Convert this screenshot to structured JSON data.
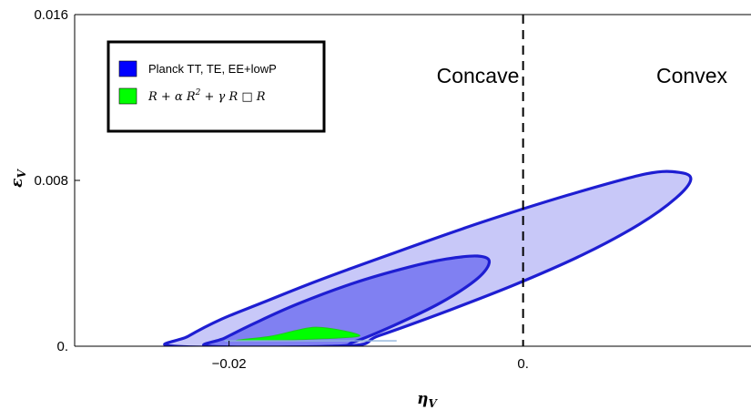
{
  "chart_data": {
    "type": "contour",
    "xlabel": "η",
    "xlabel_sub": "V",
    "ylabel": "ε",
    "ylabel_sub": "V",
    "xlim": [
      -0.0305,
      0.0155
    ],
    "ylim": [
      0,
      0.016
    ],
    "x_ticks": [
      {
        "value": -0.02,
        "label": "−0.02"
      },
      {
        "value": 0,
        "label": "0."
      }
    ],
    "y_ticks": [
      {
        "value": 0,
        "label": "0."
      },
      {
        "value": 0.008,
        "label": "0.008"
      },
      {
        "value": 0.016,
        "label": "0.016"
      }
    ],
    "divider": {
      "x": 0,
      "style": "dashed"
    },
    "region_labels": [
      "Concave",
      "Convex"
    ],
    "legend": {
      "position": "top-left",
      "entries": [
        {
          "label": "Planck TT, TE, EE+lowP",
          "color": "#0000ff"
        },
        {
          "label_parts": [
            "R + α R",
            "2",
            " + γ R □ R"
          ],
          "color": "#00ff00"
        }
      ]
    },
    "series": [
      {
        "name": "Planck TT, TE, EE+lowP",
        "kind": "confidence-contour",
        "level": "95%",
        "fill": "#c8c8f8",
        "stroke": "#1e1ed2",
        "points": [
          [
            -0.0237,
            0.0
          ],
          [
            -0.0228,
            0.00047
          ],
          [
            -0.0205,
            0.00131
          ],
          [
            -0.0177,
            0.00211
          ],
          [
            -0.0139,
            0.00318
          ],
          [
            -0.0087,
            0.00452
          ],
          [
            -0.0029,
            0.00596
          ],
          [
            0.0031,
            0.0073
          ],
          [
            0.0084,
            0.00832
          ],
          [
            0.0107,
            0.00838
          ],
          [
            0.0114,
            0.00803
          ],
          [
            0.0104,
            0.00715
          ],
          [
            0.0079,
            0.00588
          ],
          [
            0.0041,
            0.00443
          ],
          [
            -0.0005,
            0.00299
          ],
          [
            -0.0052,
            0.00169
          ],
          [
            -0.0098,
            0.00051
          ],
          [
            -0.0122,
            0.0
          ]
        ]
      },
      {
        "name": "Planck TT, TE, EE+lowP",
        "kind": "confidence-contour",
        "level": "68%",
        "fill": "#8080f2",
        "stroke": "#1e1ed2",
        "points": [
          [
            -0.0213,
            0.0
          ],
          [
            -0.0203,
            0.00039
          ],
          [
            -0.0182,
            0.00113
          ],
          [
            -0.0153,
            0.00205
          ],
          [
            -0.0115,
            0.00305
          ],
          [
            -0.0078,
            0.00381
          ],
          [
            -0.0052,
            0.00421
          ],
          [
            -0.0031,
            0.00435
          ],
          [
            -0.0023,
            0.00408
          ],
          [
            -0.0031,
            0.00327
          ],
          [
            -0.0056,
            0.0021
          ],
          [
            -0.0088,
            0.001
          ],
          [
            -0.0115,
            0.00021
          ],
          [
            -0.013,
            0.0
          ]
        ]
      },
      {
        "name": "R + α R² + γ R □ R",
        "kind": "prediction-region",
        "fill": "#00ff00",
        "stroke": "#1ec81e",
        "points": [
          [
            -0.0195,
            0.00028
          ],
          [
            -0.0172,
            0.00048
          ],
          [
            -0.0155,
            0.00075
          ],
          [
            -0.0141,
            0.00092
          ],
          [
            -0.0123,
            0.00076
          ],
          [
            -0.0111,
            0.00051
          ],
          [
            -0.0124,
            0.0004
          ],
          [
            -0.0152,
            0.00032
          ],
          [
            -0.0178,
            0.00027
          ]
        ]
      }
    ],
    "reference_line": {
      "color": "#8fb4dc",
      "points": [
        [
          -0.0203,
          0.00026
        ],
        [
          -0.0086,
          0.00026
        ]
      ]
    }
  }
}
